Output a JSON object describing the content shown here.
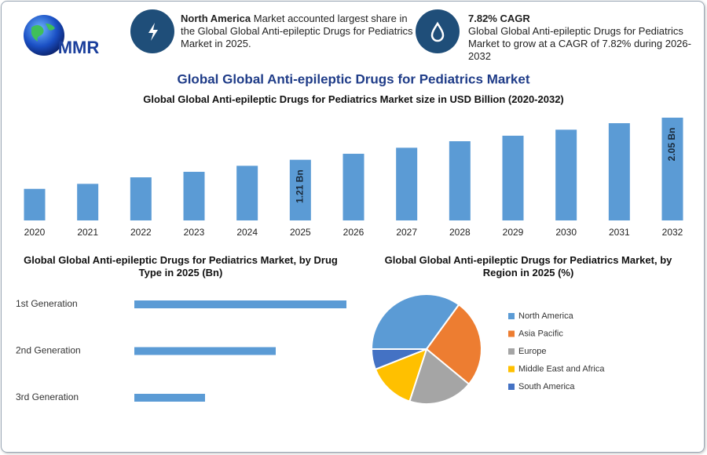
{
  "header": {
    "logo": "MMR",
    "info_1": {
      "bold": "North America",
      "text": "Market accounted largest share in the Global Global Anti-epileptic Drugs for Pediatrics Market in 2025."
    },
    "info_2": {
      "title": "7.82% CAGR",
      "text": "Global Global Anti-epileptic Drugs for Pediatrics Market to grow at a CAGR of 7.82% during 2026-2032"
    },
    "title": "Global Global Anti-epileptic Drugs for Pediatrics Market"
  },
  "chart_data": [
    {
      "type": "bar",
      "title": "Global Global Anti-epileptic Drugs for Pediatrics Market size in USD Billion (2020-2032)",
      "categories": [
        "2020",
        "2021",
        "2022",
        "2023",
        "2024",
        "2025",
        "2026",
        "2027",
        "2028",
        "2029",
        "2030",
        "2031",
        "2032"
      ],
      "values": [
        0.63,
        0.73,
        0.86,
        0.97,
        1.09,
        1.21,
        1.33,
        1.45,
        1.58,
        1.69,
        1.81,
        1.94,
        2.05
      ],
      "value_labels": [
        null,
        null,
        null,
        null,
        null,
        "1.21 Bn",
        null,
        null,
        null,
        null,
        null,
        null,
        "2.05 Bn"
      ],
      "color": "#5b9bd5"
    },
    {
      "type": "hbar",
      "title": "Global Global Anti-epileptic Drugs for Pediatrics Market, by Drug Type in 2025 (Bn)",
      "categories": [
        "1st Generation",
        "2nd Generation",
        "3rd Generation"
      ],
      "values": [
        0.6,
        0.4,
        0.2
      ],
      "color": "#5b9bd5"
    },
    {
      "type": "pie",
      "title": "Global Global Anti-epileptic Drugs for Pediatrics Market, by Region in 2025 (%)",
      "categories": [
        "North America",
        "Asia Pacific",
        "Europe",
        "Middle East and Africa",
        "South America"
      ],
      "values": [
        35,
        26,
        19,
        14,
        6
      ],
      "colors": [
        "#5b9bd5",
        "#ed7d31",
        "#a5a5a5",
        "#ffc000",
        "#4472c4"
      ]
    }
  ]
}
